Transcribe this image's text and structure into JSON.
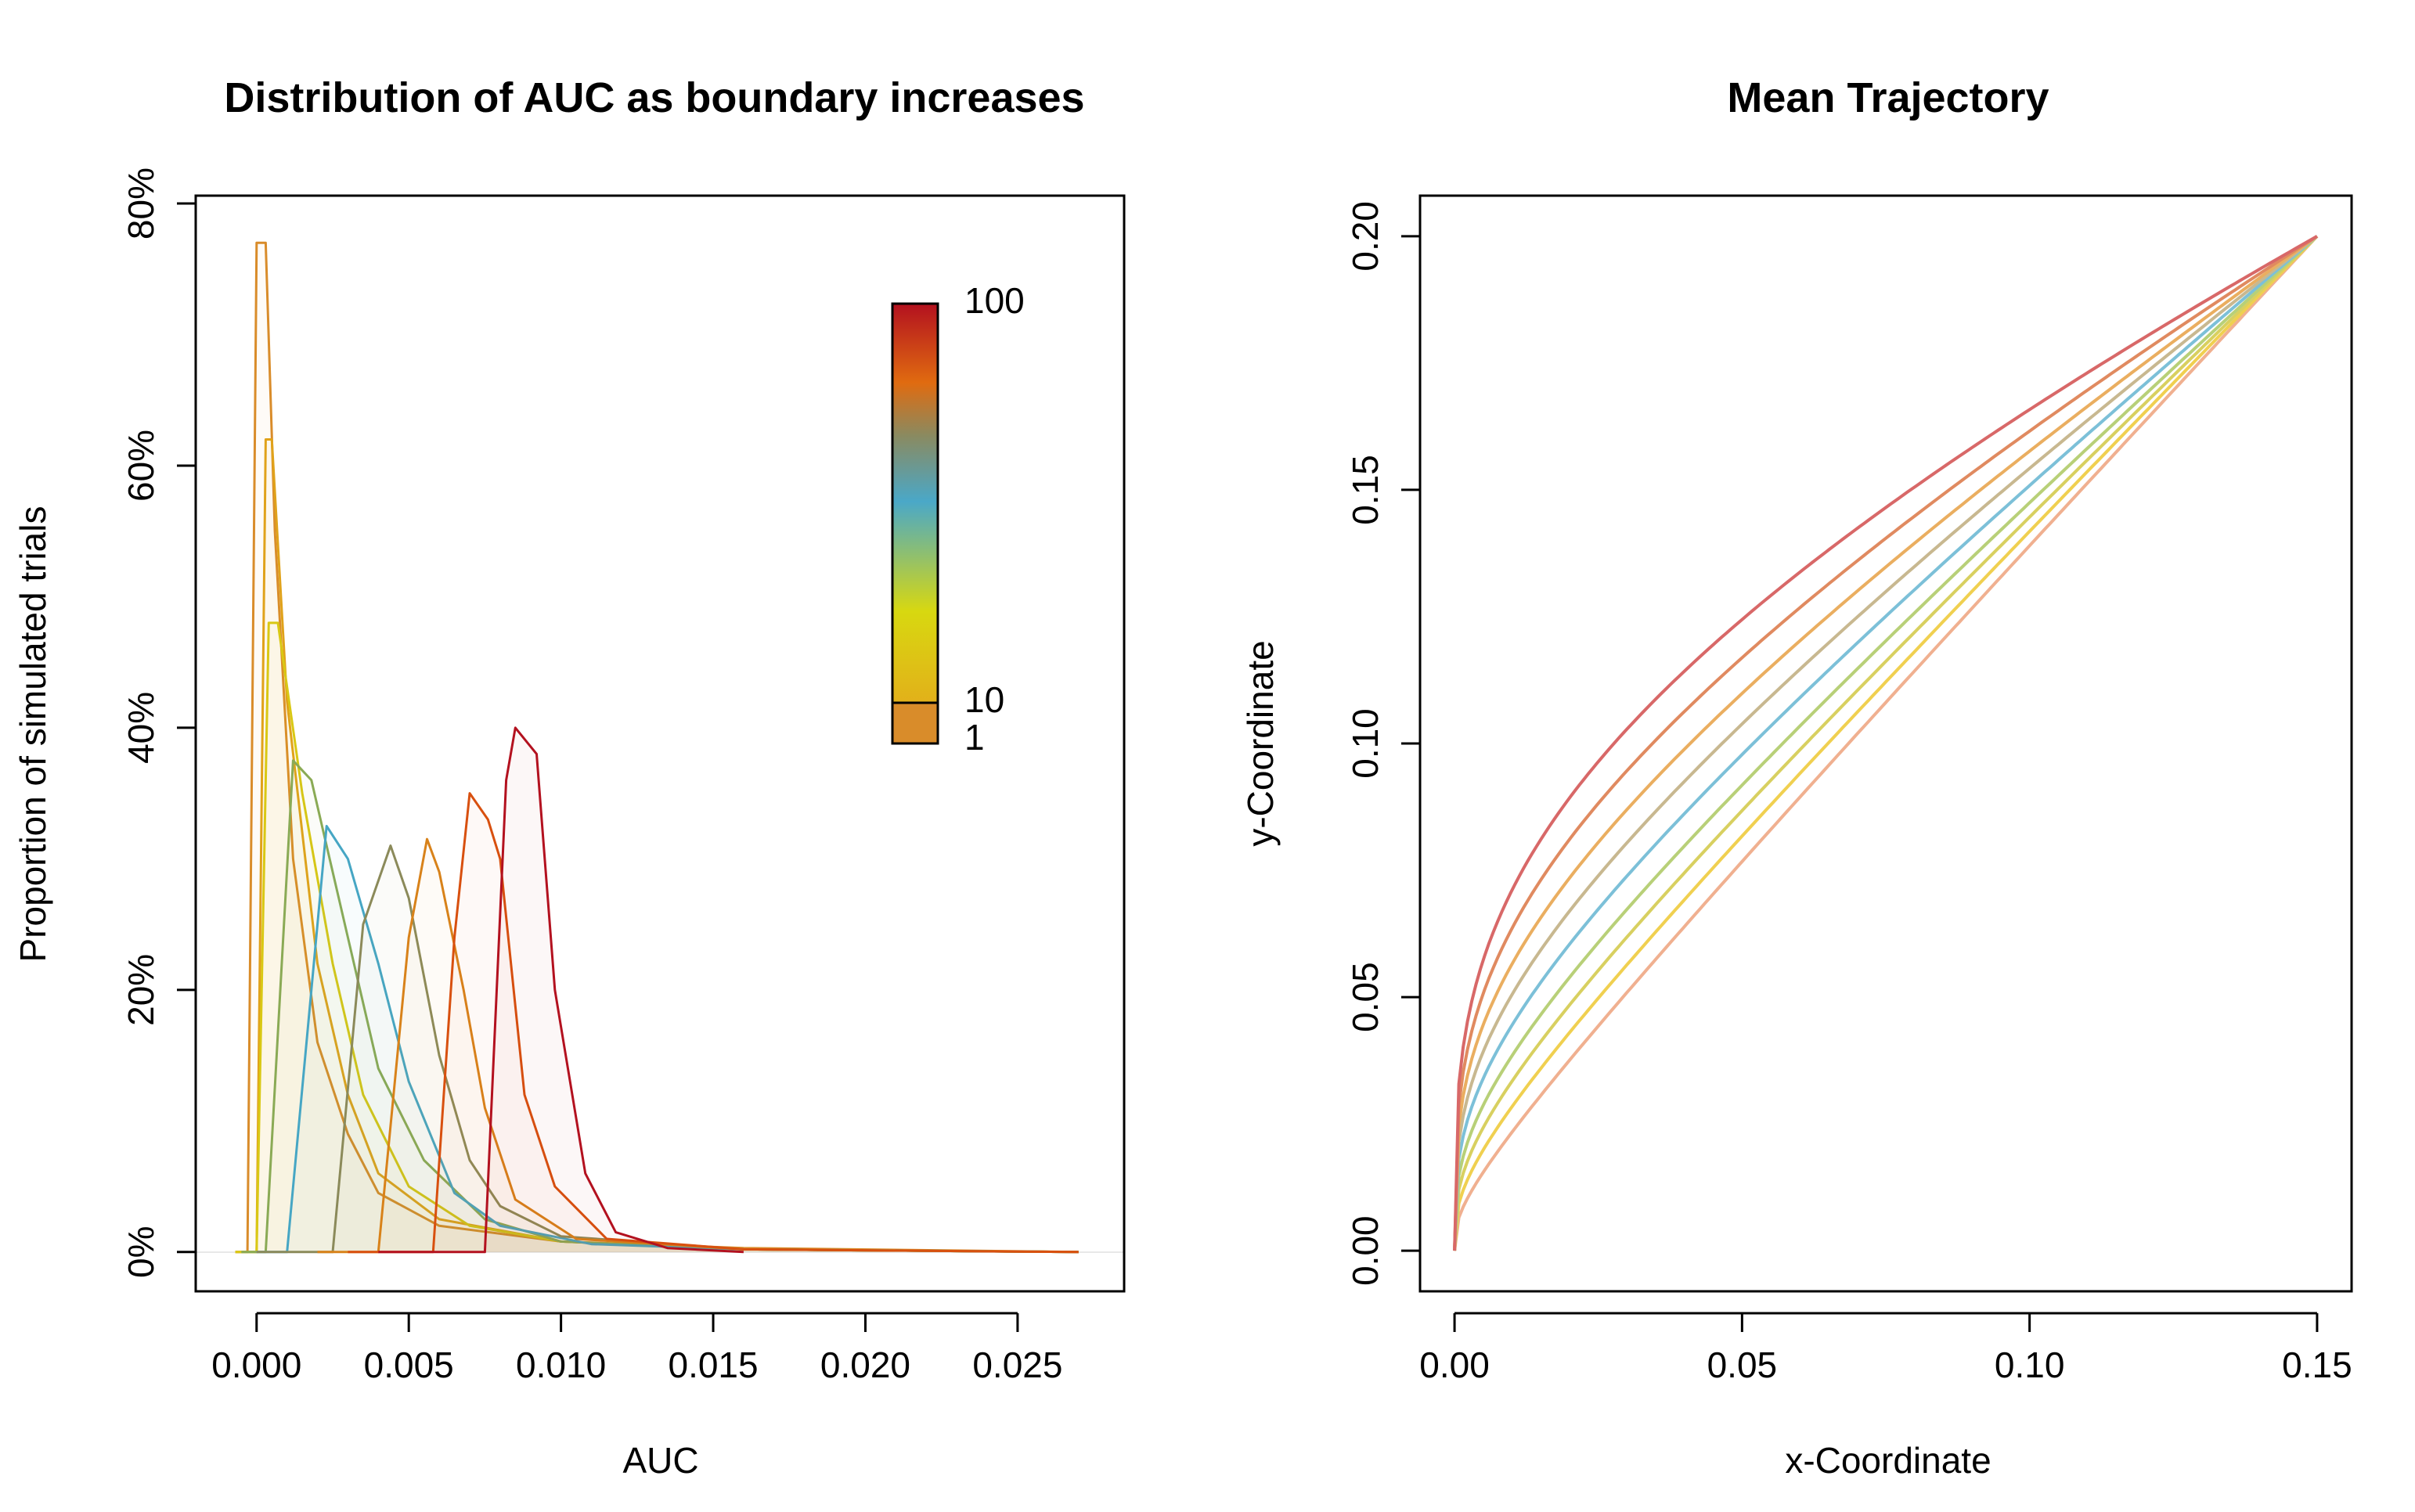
{
  "chart_data": [
    {
      "type": "line",
      "title": "Distribution of AUC as boundary increases",
      "xlabel": "AUC",
      "ylabel": "Proportion of simulated trials",
      "xlim": [
        -0.002,
        0.0285
      ],
      "ylim": [
        -0.03,
        0.806
      ],
      "xticks": [
        0.0,
        0.005,
        0.01,
        0.015,
        0.02,
        0.025
      ],
      "xtick_labels": [
        "0.000",
        "0.005",
        "0.010",
        "0.015",
        "0.020",
        "0.025"
      ],
      "yticks": [
        0.0,
        0.2,
        0.4,
        0.6,
        0.8
      ],
      "ytick_labels": [
        "0%",
        "20%",
        "40%",
        "60%",
        "80%"
      ],
      "legend": {
        "type": "colorbar",
        "placement": "top-right",
        "labels": [
          "100",
          "10",
          "1"
        ],
        "colors": [
          "#b3111f",
          "#e06b10",
          "#4aa8c8",
          "#d8d810",
          "#d98c2a"
        ]
      },
      "series": [
        {
          "color": "#d98c2a",
          "values": [
            [
              -0.0007,
              0.0
            ],
            [
              -0.0003,
              0.0
            ],
            [
              0.0,
              0.77
            ],
            [
              0.0003,
              0.77
            ],
            [
              0.0006,
              0.55
            ],
            [
              0.0012,
              0.3
            ],
            [
              0.002,
              0.16
            ],
            [
              0.003,
              0.09
            ],
            [
              0.004,
              0.045
            ],
            [
              0.006,
              0.02
            ],
            [
              0.01,
              0.008
            ],
            [
              0.016,
              0.003
            ],
            [
              0.027,
              0.0
            ]
          ]
        },
        {
          "color": "#e0a21a",
          "values": [
            [
              -0.0007,
              0.0
            ],
            [
              0.0,
              0.0
            ],
            [
              0.0003,
              0.62
            ],
            [
              0.0005,
              0.62
            ],
            [
              0.001,
              0.42
            ],
            [
              0.002,
              0.22
            ],
            [
              0.003,
              0.12
            ],
            [
              0.004,
              0.06
            ],
            [
              0.006,
              0.025
            ],
            [
              0.01,
              0.008
            ],
            [
              0.016,
              0.002
            ],
            [
              0.027,
              0.0
            ]
          ]
        },
        {
          "color": "#d9c814",
          "values": [
            [
              -0.0007,
              0.0
            ],
            [
              0.0,
              0.0
            ],
            [
              0.0004,
              0.48
            ],
            [
              0.0007,
              0.48
            ],
            [
              0.0015,
              0.35
            ],
            [
              0.0025,
              0.22
            ],
            [
              0.0035,
              0.12
            ],
            [
              0.005,
              0.05
            ],
            [
              0.007,
              0.02
            ],
            [
              0.01,
              0.008
            ],
            [
              0.016,
              0.002
            ],
            [
              0.027,
              0.0
            ]
          ]
        },
        {
          "color": "#8aaa55",
          "values": [
            [
              -0.0005,
              0.0
            ],
            [
              0.0003,
              0.0
            ],
            [
              0.0012,
              0.375
            ],
            [
              0.0018,
              0.36
            ],
            [
              0.003,
              0.24
            ],
            [
              0.004,
              0.14
            ],
            [
              0.0055,
              0.07
            ],
            [
              0.0075,
              0.025
            ],
            [
              0.01,
              0.008
            ],
            [
              0.016,
              0.002
            ],
            [
              0.027,
              0.0
            ]
          ]
        },
        {
          "color": "#46a6c4",
          "values": [
            [
              0.0,
              0.0
            ],
            [
              0.001,
              0.0
            ],
            [
              0.0023,
              0.325
            ],
            [
              0.003,
              0.3
            ],
            [
              0.004,
              0.22
            ],
            [
              0.005,
              0.13
            ],
            [
              0.0065,
              0.045
            ],
            [
              0.008,
              0.02
            ],
            [
              0.011,
              0.006
            ],
            [
              0.016,
              0.002
            ],
            [
              0.027,
              0.0
            ]
          ]
        },
        {
          "color": "#8b8a5a",
          "values": [
            [
              0.0,
              0.0
            ],
            [
              0.0025,
              0.0
            ],
            [
              0.0035,
              0.25
            ],
            [
              0.0044,
              0.31
            ],
            [
              0.005,
              0.27
            ],
            [
              0.006,
              0.15
            ],
            [
              0.007,
              0.07
            ],
            [
              0.008,
              0.035
            ],
            [
              0.01,
              0.012
            ],
            [
              0.016,
              0.002
            ],
            [
              0.027,
              0.0
            ]
          ]
        },
        {
          "color": "#d8821a",
          "values": [
            [
              0.002,
              0.0
            ],
            [
              0.004,
              0.0
            ],
            [
              0.005,
              0.24
            ],
            [
              0.0056,
              0.315
            ],
            [
              0.006,
              0.29
            ],
            [
              0.0068,
              0.2
            ],
            [
              0.0075,
              0.11
            ],
            [
              0.0085,
              0.04
            ],
            [
              0.0105,
              0.01
            ],
            [
              0.016,
              0.002
            ],
            [
              0.027,
              0.0
            ]
          ]
        },
        {
          "color": "#d8500f",
          "values": [
            [
              0.003,
              0.0
            ],
            [
              0.0058,
              0.0
            ],
            [
              0.0065,
              0.24
            ],
            [
              0.007,
              0.35
            ],
            [
              0.0076,
              0.33
            ],
            [
              0.008,
              0.3
            ],
            [
              0.0088,
              0.12
            ],
            [
              0.0098,
              0.05
            ],
            [
              0.0115,
              0.01
            ],
            [
              0.016,
              0.002
            ],
            [
              0.027,
              0.0
            ]
          ]
        },
        {
          "color": "#b3111f",
          "values": [
            [
              0.004,
              0.0
            ],
            [
              0.0075,
              0.0
            ],
            [
              0.0082,
              0.36
            ],
            [
              0.0085,
              0.4
            ],
            [
              0.0092,
              0.38
            ],
            [
              0.0098,
              0.2
            ],
            [
              0.0108,
              0.06
            ],
            [
              0.0118,
              0.015
            ],
            [
              0.0135,
              0.003
            ],
            [
              0.016,
              0.0
            ]
          ]
        }
      ]
    },
    {
      "type": "line",
      "title": "Mean Trajectory",
      "xlabel": "x-Coordinate",
      "ylabel": "y-Coordinate",
      "xlim": [
        -0.006,
        0.156
      ],
      "ylim": [
        -0.008,
        0.208
      ],
      "xticks": [
        0.0,
        0.05,
        0.1,
        0.15
      ],
      "xtick_labels": [
        "0.00",
        "0.05",
        "0.10",
        "0.15"
      ],
      "yticks": [
        0.0,
        0.05,
        0.1,
        0.15,
        0.2
      ],
      "ytick_labels": [
        "0.00",
        "0.05",
        "0.10",
        "0.15",
        "0.20"
      ],
      "endpoints": {
        "start": [
          0.0,
          0.0
        ],
        "end": [
          0.15,
          0.2
        ]
      },
      "series": [
        {
          "color": "#f0b090",
          "curvature": 0.02
        },
        {
          "color": "#f0d050",
          "curvature": 0.03
        },
        {
          "color": "#d8d060",
          "curvature": 0.04
        },
        {
          "color": "#b8d078",
          "curvature": 0.05
        },
        {
          "color": "#7cc0d8",
          "curvature": 0.062
        },
        {
          "color": "#c8b890",
          "curvature": 0.074
        },
        {
          "color": "#eaae60",
          "curvature": 0.086
        },
        {
          "color": "#e08a60",
          "curvature": 0.1
        },
        {
          "color": "#d86868",
          "curvature": 0.115
        }
      ]
    }
  ]
}
